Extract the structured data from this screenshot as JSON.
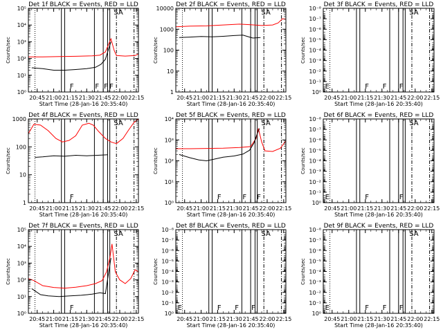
{
  "chart_data": [
    {
      "type": "line",
      "panel_id": "det1f",
      "title": "Det 1f  BLACK = Events, RED = LLD",
      "xlabel": "Start Time (28-Jan-16 20:35:40)",
      "ylabel": "Counts/sec",
      "scale_y": "log",
      "ylim": [
        1,
        100000
      ],
      "xlim": [
        "20:37",
        "22:17"
      ],
      "yticks": [
        {
          "v": 1,
          "label": "10⁰"
        },
        {
          "v": 10,
          "label": "10¹"
        },
        {
          "v": 100,
          "label": "10²"
        },
        {
          "v": 1000,
          "label": "10³"
        },
        {
          "v": 10000,
          "label": "10⁴"
        },
        {
          "v": 100000,
          "label": "10⁵"
        }
      ],
      "xticks": [
        "20:45",
        "21:00",
        "21:15",
        "21:30",
        "21:45",
        "22:00",
        "22:15"
      ],
      "series": [
        {
          "color": "#ff0000",
          "x": [
            "20:37",
            "20:50",
            "21:05",
            "21:20",
            "21:35",
            "21:42",
            "21:47",
            "21:52",
            "21:55",
            "21:57",
            "22:05",
            "22:14",
            "22:17"
          ],
          "values": [
            125,
            125,
            130,
            135,
            145,
            160,
            250,
            1500,
            300,
            150,
            140,
            150,
            185
          ]
        },
        {
          "color": "#000000",
          "x": [
            "20:40",
            "20:50",
            "21:00",
            "21:10",
            "21:20",
            "21:30",
            "21:38",
            "21:43",
            "21:47",
            "21:50",
            "21:52"
          ],
          "values": [
            28,
            25,
            20,
            20,
            22,
            25,
            30,
            45,
            90,
            400,
            1000
          ]
        }
      ],
      "lines_solid": [
        "21:07",
        "21:10",
        "21:37",
        "21:45",
        "21:49",
        "21:51"
      ],
      "lines_dotted": [
        "20:43"
      ],
      "lines_dashdot": [
        "21:57",
        "22:13"
      ],
      "markers": [
        {
          "x": "21:14",
          "label": "F"
        },
        {
          "x": "21:37",
          "label": "F"
        },
        {
          "x": "21:45",
          "label": "F"
        },
        {
          "x": "21:50",
          "label": "F"
        },
        {
          "x": "21:54",
          "label": "SA"
        }
      ]
    },
    {
      "type": "line",
      "panel_id": "det2f",
      "title": "Det 2f  BLACK = Events, RED = LLD",
      "xlabel": "Start Time (28-Jan-16 20:35:40)",
      "ylabel": "Counts/sec",
      "scale_y": "log",
      "ylim": [
        1,
        10000
      ],
      "xlim": [
        "20:37",
        "22:17"
      ],
      "yticks": [
        {
          "v": 1,
          "label": "1"
        },
        {
          "v": 10,
          "label": "10"
        },
        {
          "v": 100,
          "label": "100"
        },
        {
          "v": 1000,
          "label": "1000"
        },
        {
          "v": 10000,
          "label": "10000"
        }
      ],
      "xticks": [
        "20:45",
        "21:00",
        "21:15",
        "21:30",
        "21:45",
        "22:00",
        "22:15"
      ],
      "series": [
        {
          "color": "#ff0000",
          "x": [
            "20:37",
            "20:50",
            "21:05",
            "21:20",
            "21:35",
            "21:45",
            "21:55",
            "22:05",
            "22:10",
            "22:14",
            "22:17"
          ],
          "values": [
            1300,
            1400,
            1450,
            1600,
            1750,
            1650,
            1500,
            1600,
            2000,
            3200,
            3000
          ]
        },
        {
          "color": "#000000",
          "x": [
            "20:40",
            "20:50",
            "21:00",
            "21:10",
            "21:20",
            "21:30",
            "21:38",
            "21:44",
            "21:47",
            "21:54"
          ],
          "values": [
            400,
            420,
            450,
            430,
            460,
            500,
            520,
            420,
            380,
            400
          ]
        }
      ],
      "lines_solid": [
        "21:07",
        "21:10",
        "21:37",
        "21:45",
        "21:49",
        "21:51"
      ],
      "lines_dotted": [
        "20:43"
      ],
      "lines_dashdot": [
        "21:57",
        "22:13"
      ],
      "markers": [
        {
          "x": "21:54",
          "label": "SA"
        }
      ]
    },
    {
      "type": "line",
      "panel_id": "det3f",
      "title": "Det 3f  BLACK = Events, RED = LLD",
      "xlabel": "Start Time (28-Jan-16 20:35:40)",
      "ylabel": "Counts/sec",
      "scale_y": "log",
      "ylim": [
        1,
        1e-08
      ],
      "xlim": [
        "20:37",
        "22:17"
      ],
      "yticks": [
        {
          "v": 1,
          "label": "10⁰"
        },
        {
          "v": 0.1,
          "label": "10⁻¹"
        },
        {
          "v": 0.01,
          "label": "10⁻²"
        },
        {
          "v": 0.001,
          "label": "10⁻³"
        },
        {
          "v": 0.0001,
          "label": "10⁻⁴"
        },
        {
          "v": 1e-05,
          "label": "10⁻⁵"
        },
        {
          "v": 1e-06,
          "label": "10⁻⁶"
        },
        {
          "v": 1e-07,
          "label": "10⁻⁷"
        },
        {
          "v": 1e-08,
          "label": "10⁻⁸"
        }
      ],
      "xticks": [
        "20:45",
        "21:00",
        "21:15",
        "21:30",
        "21:45",
        "22:00",
        "22:15"
      ],
      "series": [],
      "lines_solid": [
        "21:07",
        "21:10",
        "21:37",
        "21:45",
        "21:49",
        "21:51"
      ],
      "lines_dotted": [
        "20:43"
      ],
      "lines_dashdot": [
        "21:57",
        "22:13"
      ],
      "markers": [
        {
          "x": "20:38",
          "label": "E"
        },
        {
          "x": "21:14",
          "label": "F"
        },
        {
          "x": "21:30",
          "label": "F"
        },
        {
          "x": "21:45",
          "label": "F"
        },
        {
          "x": "21:54",
          "label": "SA"
        }
      ]
    },
    {
      "type": "line",
      "panel_id": "det4f",
      "title": "Det 4f  BLACK = Events, RED = LLD",
      "xlabel": "Start Time (28-Jan-16 20:35:40)",
      "ylabel": "Counts/sec",
      "scale_y": "log",
      "ylim": [
        1,
        1000
      ],
      "xlim": [
        "20:37",
        "22:17"
      ],
      "yticks": [
        {
          "v": 1,
          "label": "1"
        },
        {
          "v": 10,
          "label": "10"
        },
        {
          "v": 100,
          "label": "100"
        },
        {
          "v": 1000,
          "label": "1000"
        }
      ],
      "xticks": [
        "20:45",
        "21:00",
        "21:15",
        "21:30",
        "21:45",
        "22:00",
        "22:15"
      ],
      "series": [
        {
          "color": "#ff0000",
          "x": [
            "20:37",
            "20:42",
            "20:48",
            "20:55",
            "21:02",
            "21:08",
            "21:14",
            "21:20",
            "21:26",
            "21:32",
            "21:36",
            "21:41",
            "21:47",
            "21:52",
            "21:57",
            "22:03",
            "22:08",
            "22:13",
            "22:17"
          ],
          "values": [
            300,
            650,
            600,
            380,
            200,
            150,
            170,
            250,
            600,
            700,
            600,
            350,
            200,
            150,
            130,
            200,
            400,
            750,
            1000
          ]
        },
        {
          "color": "#000000",
          "x": [
            "20:43",
            "20:50",
            "21:00",
            "21:10",
            "21:20",
            "21:30",
            "21:40",
            "21:49"
          ],
          "values": [
            42,
            44,
            48,
            46,
            50,
            48,
            50,
            52
          ]
        }
      ],
      "lines_solid": [
        "21:07",
        "21:10",
        "21:37",
        "21:45",
        "21:49",
        "21:51"
      ],
      "lines_dotted": [
        "20:43"
      ],
      "lines_dashdot": [
        "21:57",
        "22:13"
      ],
      "markers": [
        {
          "x": "21:14",
          "label": "F"
        },
        {
          "x": "21:54",
          "label": "SA"
        }
      ]
    },
    {
      "type": "line",
      "panel_id": "det5f",
      "title": "Det 5f  BLACK = Events, RED = LLD",
      "xlabel": "Start Time (28-Jan-16 20:35:40)",
      "ylabel": "Counts/sec",
      "scale_y": "log",
      "ylim": [
        1,
        10000
      ],
      "xlim": [
        "20:37",
        "22:17"
      ],
      "yticks": [
        {
          "v": 1,
          "label": "10⁰"
        },
        {
          "v": 10,
          "label": "10¹"
        },
        {
          "v": 100,
          "label": "10²"
        },
        {
          "v": 1000,
          "label": "10³"
        },
        {
          "v": 10000,
          "label": "10⁴"
        }
      ],
      "xticks": [
        "20:45",
        "21:00",
        "21:15",
        "21:30",
        "21:45",
        "22:00",
        "22:15"
      ],
      "series": [
        {
          "color": "#ff0000",
          "x": [
            "20:37",
            "20:50",
            "21:05",
            "21:20",
            "21:35",
            "21:45",
            "21:50",
            "21:52",
            "21:55",
            "21:58",
            "22:05",
            "22:12",
            "22:17"
          ],
          "values": [
            380,
            380,
            390,
            400,
            430,
            480,
            1200,
            3500,
            800,
            300,
            280,
            400,
            900
          ]
        },
        {
          "color": "#000000",
          "x": [
            "20:40",
            "20:50",
            "20:58",
            "21:05",
            "21:10",
            "21:20",
            "21:30",
            "21:38",
            "21:44",
            "21:48",
            "21:51",
            "21:53"
          ],
          "values": [
            200,
            140,
            110,
            100,
            115,
            150,
            170,
            210,
            320,
            700,
            2000,
            3500
          ]
        }
      ],
      "lines_solid": [
        "21:07",
        "21:10",
        "21:37",
        "21:45",
        "21:49",
        "21:51"
      ],
      "lines_dotted": [
        "20:43"
      ],
      "lines_dashdot": [
        "21:57",
        "22:13"
      ],
      "markers": [
        {
          "x": "21:14",
          "label": "F"
        },
        {
          "x": "21:37",
          "label": "F"
        },
        {
          "x": "21:50",
          "label": "F"
        },
        {
          "x": "21:54",
          "label": "SA"
        }
      ]
    },
    {
      "type": "line",
      "panel_id": "det6f",
      "title": "Det 6f  BLACK = Events, RED = LLD",
      "xlabel": "Start Time (28-Jan-16 20:35:40)",
      "ylabel": "Counts/sec",
      "scale_y": "log",
      "ylim": [
        1,
        1e-08
      ],
      "xlim": [
        "20:37",
        "22:17"
      ],
      "yticks": [
        {
          "v": 1,
          "label": "10⁰"
        },
        {
          "v": 0.1,
          "label": "10⁻¹"
        },
        {
          "v": 0.01,
          "label": "10⁻²"
        },
        {
          "v": 0.001,
          "label": "10⁻³"
        },
        {
          "v": 0.0001,
          "label": "10⁻⁴"
        },
        {
          "v": 1e-05,
          "label": "10⁻⁵"
        },
        {
          "v": 1e-06,
          "label": "10⁻⁶"
        },
        {
          "v": 1e-07,
          "label": "10⁻⁷"
        },
        {
          "v": 1e-08,
          "label": "10⁻⁸"
        }
      ],
      "xticks": [
        "20:45",
        "21:00",
        "21:15",
        "21:30",
        "21:45",
        "22:00",
        "22:15"
      ],
      "series": [],
      "lines_solid": [
        "21:07",
        "21:10",
        "21:37",
        "21:45",
        "21:49",
        "21:51"
      ],
      "lines_dotted": [
        "20:43"
      ],
      "lines_dashdot": [
        "21:57",
        "22:13"
      ],
      "markers": [
        {
          "x": "20:38",
          "label": "E"
        },
        {
          "x": "21:14",
          "label": "F"
        },
        {
          "x": "21:45",
          "label": "F"
        },
        {
          "x": "21:54",
          "label": "SA"
        }
      ]
    },
    {
      "type": "line",
      "panel_id": "det7f",
      "title": "Det 7f  BLACK = Events, RED = LLD",
      "xlabel": "Start Time (28-Jan-16 20:35:40)",
      "ylabel": "Counts/sec",
      "scale_y": "log",
      "ylim": [
        1,
        100000
      ],
      "xlim": [
        "20:37",
        "22:17"
      ],
      "yticks": [
        {
          "v": 1,
          "label": "10⁰"
        },
        {
          "v": 10,
          "label": "10¹"
        },
        {
          "v": 100,
          "label": "10²"
        },
        {
          "v": 1000,
          "label": "10³"
        },
        {
          "v": 10000,
          "label": "10⁴"
        },
        {
          "v": 100000,
          "label": "10⁵"
        }
      ],
      "xticks": [
        "20:45",
        "21:00",
        "21:15",
        "21:30",
        "21:45",
        "22:00",
        "22:15"
      ],
      "series": [
        {
          "color": "#ff0000",
          "x": [
            "20:37",
            "20:42",
            "20:50",
            "21:00",
            "21:10",
            "21:20",
            "21:30",
            "21:38",
            "21:44",
            "21:48",
            "21:51",
            "21:53",
            "21:56",
            "22:00",
            "22:05",
            "22:10",
            "22:14",
            "22:17"
          ],
          "values": [
            120,
            90,
            45,
            35,
            32,
            36,
            45,
            60,
            90,
            300,
            2000,
            14000,
            300,
            100,
            60,
            120,
            400,
            300
          ]
        },
        {
          "color": "#000000",
          "x": [
            "20:40",
            "20:48",
            "20:55",
            "21:05",
            "21:15",
            "21:25",
            "21:35",
            "21:42",
            "21:47",
            "21:50",
            "21:52"
          ],
          "values": [
            30,
            13,
            11,
            10,
            11,
            12,
            14,
            17,
            15,
            300,
            2000
          ]
        }
      ],
      "lines_solid": [
        "21:07",
        "21:10",
        "21:37",
        "21:45",
        "21:49",
        "21:51"
      ],
      "lines_dotted": [
        "20:43"
      ],
      "lines_dashdot": [
        "21:57",
        "22:13"
      ],
      "markers": [
        {
          "x": "21:14",
          "label": "F"
        },
        {
          "x": "21:54",
          "label": "SA"
        }
      ]
    },
    {
      "type": "line",
      "panel_id": "det8f",
      "title": "Det 8f  BLACK = Events, RED = LLD",
      "xlabel": "Start Time (28-Jan-16 20:35:40)",
      "ylabel": "Counts/sec",
      "scale_y": "log",
      "ylim": [
        1,
        1e-08
      ],
      "xlim": [
        "20:37",
        "22:17"
      ],
      "yticks": [
        {
          "v": 1,
          "label": "10⁰"
        },
        {
          "v": 0.1,
          "label": "10⁻¹"
        },
        {
          "v": 0.01,
          "label": "10⁻²"
        },
        {
          "v": 0.001,
          "label": "10⁻³"
        },
        {
          "v": 0.0001,
          "label": "10⁻⁴"
        },
        {
          "v": 1e-05,
          "label": "10⁻⁵"
        },
        {
          "v": 1e-06,
          "label": "10⁻⁶"
        },
        {
          "v": 1e-07,
          "label": "10⁻⁷"
        },
        {
          "v": 1e-08,
          "label": "10⁻⁸"
        }
      ],
      "xticks": [
        "20:45",
        "21:00",
        "21:15",
        "21:30",
        "21:45",
        "22:00",
        "22:15"
      ],
      "series": [],
      "lines_solid": [
        "21:07",
        "21:10",
        "21:37",
        "21:45",
        "21:49",
        "21:51"
      ],
      "lines_dotted": [
        "20:43"
      ],
      "lines_dashdot": [
        "21:57",
        "22:13"
      ],
      "markers": [
        {
          "x": "20:38",
          "label": "E"
        },
        {
          "x": "21:14",
          "label": "F"
        },
        {
          "x": "21:30",
          "label": "F"
        },
        {
          "x": "21:45",
          "label": "F"
        },
        {
          "x": "21:54",
          "label": "SA"
        }
      ]
    },
    {
      "type": "line",
      "panel_id": "det9f",
      "title": "Det 9f  BLACK = Events, RED = LLD",
      "xlabel": "Start Time (28-Jan-16 20:35:40)",
      "ylabel": "Counts/sec",
      "scale_y": "log",
      "ylim": [
        1,
        1e-08
      ],
      "xlim": [
        "20:37",
        "22:17"
      ],
      "yticks": [
        {
          "v": 1,
          "label": "10⁰"
        },
        {
          "v": 0.1,
          "label": "10⁻¹"
        },
        {
          "v": 0.01,
          "label": "10⁻²"
        },
        {
          "v": 0.001,
          "label": "10⁻³"
        },
        {
          "v": 0.0001,
          "label": "10⁻⁴"
        },
        {
          "v": 1e-05,
          "label": "10⁻⁵"
        },
        {
          "v": 1e-06,
          "label": "10⁻⁶"
        },
        {
          "v": 1e-07,
          "label": "10⁻⁷"
        },
        {
          "v": 1e-08,
          "label": "10⁻⁸"
        }
      ],
      "xticks": [
        "20:45",
        "21:00",
        "21:15",
        "21:30",
        "21:45",
        "22:00",
        "22:15"
      ],
      "series": [],
      "lines_solid": [
        "21:07",
        "21:10",
        "21:37",
        "21:45",
        "21:49",
        "21:51"
      ],
      "lines_dotted": [
        "20:43"
      ],
      "lines_dashdot": [
        "21:57",
        "22:13"
      ],
      "markers": [
        {
          "x": "20:38",
          "label": "E"
        },
        {
          "x": "21:14",
          "label": "F"
        },
        {
          "x": "21:30",
          "label": "F"
        },
        {
          "x": "21:45",
          "label": "F"
        },
        {
          "x": "21:54",
          "label": "SA"
        }
      ]
    }
  ]
}
